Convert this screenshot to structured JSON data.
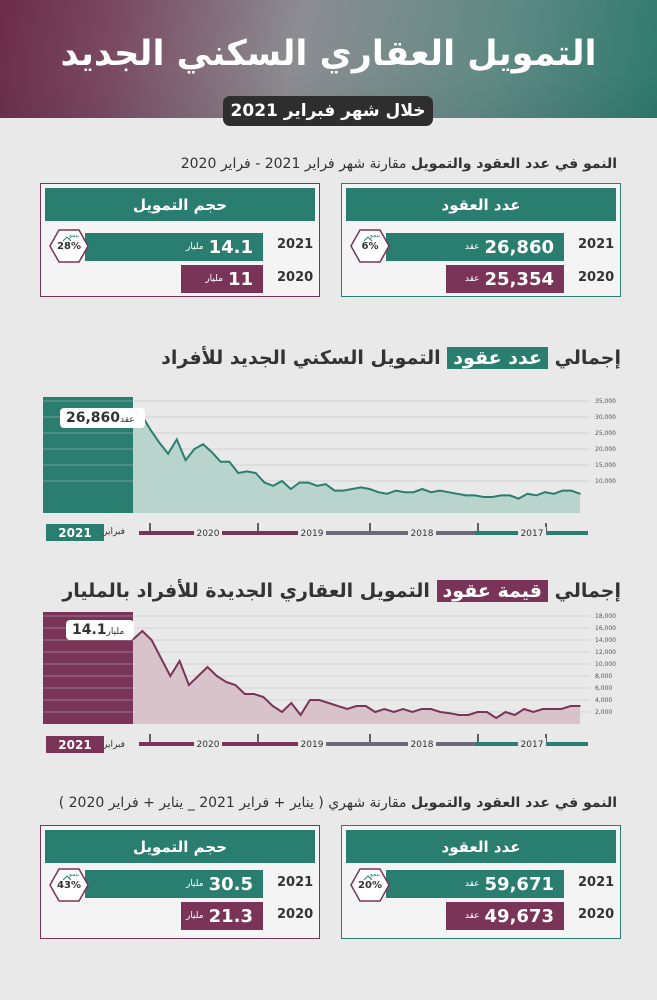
{
  "header": {
    "title": "التمويل العقاري السكني الجديد",
    "subtitle": "خلال شهر فبراير 2021"
  },
  "section1": {
    "title_bold": "النمو في عدد العقود والتمويل",
    "title_rest": "مقارنة شهر فراير 2021 - فراير 2020",
    "contracts": {
      "heading": "عدد العقود",
      "year_2021": "2021",
      "value_2021": "26,860",
      "unit_2021": "عقد",
      "year_2020": "2020",
      "value_2020": "25,354",
      "unit_2020": "عقد",
      "growth_label": "بنمو",
      "growth_pct": "6%"
    },
    "funding": {
      "heading": "حجم التمويل",
      "year_2021": "2021",
      "value_2021": "14.1",
      "unit_2021": "مليار",
      "year_2020": "2020",
      "value_2020": "11",
      "unit_2020": "مليار",
      "growth_label": "بنمو",
      "growth_pct": "28%"
    }
  },
  "chart1": {
    "title_pre": "إجمالي",
    "title_highlight": "عدد عقود",
    "title_post": "التمويل السكني الجديد للأفراد",
    "callout_value": "26,860",
    "callout_unit": "عقد",
    "year_badge": "2021",
    "month_label": "فبراير",
    "y_ticks": [
      "35,000",
      "30,000",
      "25,000",
      "20,000",
      "15,000",
      "10,000"
    ],
    "timeline_years": [
      "2020",
      "2019",
      "2018",
      "2017"
    ]
  },
  "chart2": {
    "title_pre": "إجمالي",
    "title_highlight": "قيمة عقود",
    "title_post": "التمويل العقاري الجديدة للأفراد بالمليار",
    "callout_value": "14.1",
    "callout_unit": "مليار",
    "year_badge": "2021",
    "month_label": "فبراير",
    "y_ticks": [
      "18,000",
      "16,000",
      "14,000",
      "12,000",
      "10,000",
      "8,000",
      "6,000",
      "4,000",
      "2,000"
    ],
    "timeline_years": [
      "2020",
      "2019",
      "2018",
      "2017"
    ]
  },
  "section2": {
    "title_bold": "النمو في عدد العقود والتمويل",
    "title_rest": "مقارنة شهري ( يناير + فراير 2021 _ يناير + فراير 2020 )",
    "contracts": {
      "heading": "عدد العقود",
      "year_2021": "2021",
      "value_2021": "59,671",
      "unit_2021": "عقد",
      "year_2020": "2020",
      "value_2020": "49,673",
      "unit_2020": "عقد",
      "growth_label": "بنمو",
      "growth_pct": "20%"
    },
    "funding": {
      "heading": "حجم التمويل",
      "year_2021": "2021",
      "value_2021": "30.5",
      "unit_2021": "مليار",
      "year_2020": "2020",
      "value_2020": "21.3",
      "unit_2020": "مليار",
      "growth_label": "بنمو",
      "growth_pct": "43%"
    }
  },
  "colors": {
    "green": "#2a7e6f",
    "purple": "#7a3457",
    "dark": "#2e2e2e"
  },
  "chart_data": [
    {
      "type": "area",
      "ylim": [
        0,
        35000
      ],
      "series": [
        {
          "values": [
            26860,
            30500,
            26000,
            22000,
            18500,
            23000,
            16500,
            20000,
            21500,
            19000,
            16000,
            16000,
            12500,
            13000,
            12500,
            9500,
            8500,
            10000,
            7500,
            9500,
            9500,
            8500,
            9000,
            7000,
            7000,
            7500,
            8000,
            7500,
            6500,
            6000,
            7000,
            6500,
            6500,
            7500,
            6500,
            7000,
            6500,
            6000,
            5500,
            5500,
            5000,
            5000,
            5500,
            5500,
            4500,
            6000,
            5500,
            6500,
            6000,
            7000,
            7000,
            6000
          ]
        }
      ]
    },
    {
      "type": "area",
      "ylim": [
        0,
        18000
      ],
      "series": [
        {
          "values": [
            14100,
            15500,
            14000,
            11000,
            8000,
            10500,
            6500,
            8000,
            9500,
            8000,
            7000,
            6500,
            5000,
            5000,
            4500,
            3000,
            2000,
            3500,
            1500,
            4000,
            4000,
            3500,
            3000,
            2500,
            3000,
            3000,
            2000,
            2500,
            2000,
            2500,
            2000,
            2500,
            2500,
            2000,
            1800,
            1500,
            1500,
            2000,
            2000,
            1000,
            2000,
            1500,
            2500,
            2000,
            2500,
            2500,
            2500,
            3000,
            3000
          ]
        }
      ]
    }
  ]
}
